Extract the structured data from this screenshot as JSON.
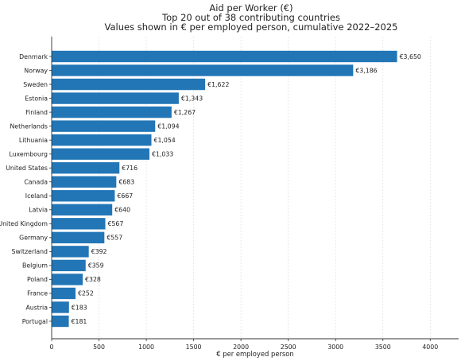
{
  "chart_data": {
    "type": "bar",
    "orientation": "horizontal",
    "title_lines": [
      "Aid per Worker (€)",
      "Top 20 out of 38 contributing countries",
      "Values shown in € per employed person, cumulative 2022–2025"
    ],
    "xlabel": "€ per employed person",
    "ylabel": "",
    "xlim": [
      0,
      4300
    ],
    "x_ticks": [
      0,
      500,
      1000,
      1500,
      2000,
      2500,
      3000,
      3500,
      4000
    ],
    "grid": "vertical dashed",
    "bar_color": "#2276b6",
    "categories": [
      "Denmark",
      "Norway",
      "Sweden",
      "Estonia",
      "Finland",
      "Netherlands",
      "Lithuania",
      "Luxembourg",
      "United States",
      "Canada",
      "Iceland",
      "Latvia",
      "United Kingdom",
      "Germany",
      "Switzerland",
      "Belgium",
      "Poland",
      "France",
      "Austria",
      "Portugal"
    ],
    "values": [
      3650,
      3186,
      1622,
      1343,
      1267,
      1094,
      1054,
      1033,
      716,
      683,
      667,
      640,
      567,
      557,
      392,
      359,
      328,
      252,
      183,
      181
    ],
    "data_labels": [
      "€3,650",
      "€3,186",
      "€1,622",
      "€1,343",
      "€1,267",
      "€1,094",
      "€1,054",
      "€1,033",
      "€716",
      "€683",
      "€667",
      "€640",
      "€567",
      "€557",
      "€392",
      "€359",
      "€328",
      "€252",
      "€183",
      "€181"
    ]
  }
}
